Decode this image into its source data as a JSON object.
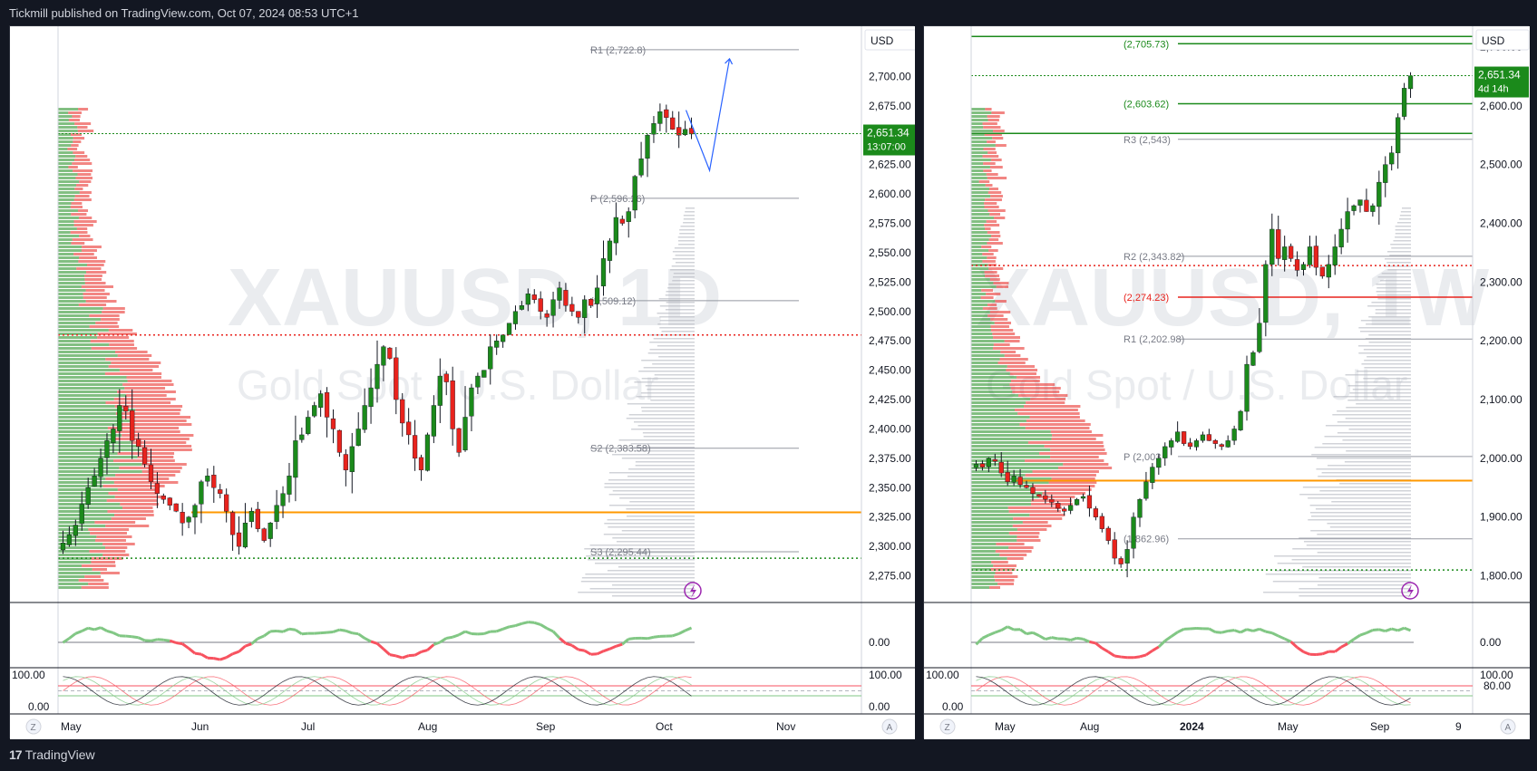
{
  "header": {
    "published": "Tickmill published on TradingView.com, Oct 07, 2024 08:53 UTC+1"
  },
  "footer": {
    "logo_mark": "17",
    "logo_text": "TradingView"
  },
  "left_chart": {
    "symbol_watermark": "XAUUSD, 1D",
    "name_watermark": "Gold Spot / U.S. Dollar",
    "currency": "USD",
    "last_price": "2,651.34",
    "countdown": "13:07:00",
    "y_ticks": [
      "2,700.00",
      "2,675.00",
      "2,650.00",
      "2,625.00",
      "2,600.00",
      "2,575.00",
      "2,550.00",
      "2,525.00",
      "2,500.00",
      "2,475.00",
      "2,450.00",
      "2,425.00",
      "2,400.00",
      "2,375.00",
      "2,350.00",
      "2,325.00",
      "2,300.00",
      "2,275.00"
    ],
    "x_ticks": [
      "May",
      "Jun",
      "Jul",
      "Aug",
      "Sep",
      "Oct",
      "Nov"
    ],
    "pivots": [
      {
        "label": "R1 (2,722.8)",
        "value": 2722.8
      },
      {
        "label": "P (2,596.26)",
        "value": 2596.26
      },
      {
        "label": "(2,509.12)",
        "value": 2509.12
      },
      {
        "label": "S2 (2,383.58)",
        "value": 2383.58
      },
      {
        "label": "S3 (2,295.44)",
        "value": 2295.44
      }
    ],
    "osc1_tick": "0.00",
    "osc2_ticks": [
      "100.00",
      "0.00"
    ],
    "corner_left": "Z",
    "corner_right": "A",
    "colors": {
      "up": "#1b8a1b",
      "down": "#e8231d",
      "pivot": "#9598a1",
      "orange": "#ff9800",
      "dotted_red": "#e8231d",
      "dotted_green": "#1b8a1b"
    }
  },
  "right_chart": {
    "symbol_watermark": "XAUUSD, 1W",
    "name_watermark": "Gold Spot / U.S. Dollar",
    "currency": "USD",
    "last_price": "2,651.34",
    "countdown": "4d 14h",
    "y_ticks": [
      "2,700.00",
      "2,600.00",
      "2,500.00",
      "2,400.00",
      "2,300.00",
      "2,200.00",
      "2,100.00",
      "2,000.00",
      "1,900.00",
      "1,800.00"
    ],
    "x_ticks": [
      "May",
      "Aug",
      "2024",
      "May",
      "Sep",
      "9"
    ],
    "levels": [
      {
        "label": "(2,705.73)",
        "value": 2705.73
      },
      {
        "label": "(2,603.62)",
        "value": 2603.62
      },
      {
        "label": "R3 (2,543)",
        "value": 2543
      },
      {
        "label": "R2 (2,343.82)",
        "value": 2343.82
      },
      {
        "label": "(2,274.23)",
        "value": 2274.23
      },
      {
        "label": "R1 (2,202.98)",
        "value": 2202.98
      },
      {
        "label": "P (2,003",
        "value": 2003
      },
      {
        "label": "(1,862.96)",
        "value": 1862.96
      }
    ],
    "osc1_tick": "0.00",
    "osc2_ticks": [
      "100.00",
      "0.00",
      "80.00"
    ],
    "corner_left": "Z",
    "corner_right": "A"
  },
  "chart_data": [
    {
      "type": "candlestick",
      "title": "XAUUSD, 1D",
      "ylim": [
        2260,
        2735
      ],
      "y_axis": "price (USD)",
      "closes_approx": [
        2303,
        2310,
        2318,
        2336,
        2350,
        2360,
        2375,
        2390,
        2400,
        2420,
        2415,
        2390,
        2385,
        2370,
        2355,
        2345,
        2340,
        2335,
        2330,
        2320,
        2325,
        2335,
        2355,
        2360,
        2350,
        2345,
        2330,
        2310,
        2300,
        2320,
        2330,
        2315,
        2305,
        2320,
        2335,
        2345,
        2360,
        2390,
        2395,
        2410,
        2420,
        2430,
        2410,
        2400,
        2380,
        2365,
        2385,
        2400,
        2420,
        2435,
        2455,
        2470,
        2460,
        2425,
        2405,
        2395,
        2375,
        2365,
        2395,
        2420,
        2445,
        2440,
        2400,
        2380,
        2410,
        2435,
        2445,
        2450,
        2470,
        2475,
        2480,
        2490,
        2500,
        2505,
        2515,
        2510,
        2500,
        2495,
        2510,
        2520,
        2505,
        2500,
        2495,
        2510,
        2505,
        2520,
        2545,
        2560,
        2580,
        2575,
        2585,
        2615,
        2630,
        2650,
        2660,
        2670,
        2665,
        2655,
        2650,
        2655,
        2651
      ],
      "forecast_path": [
        {
          "label": "down",
          "value": 2620
        },
        {
          "label": "up",
          "value": 2715
        }
      ]
    },
    {
      "type": "candlestick",
      "title": "XAUUSD, 1W",
      "ylim": [
        1770,
        2720
      ],
      "y_axis": "price (USD)",
      "closes_approx": [
        1990,
        1985,
        2000,
        1995,
        1975,
        1960,
        1970,
        1955,
        1950,
        1940,
        1935,
        1930,
        1925,
        1915,
        1910,
        1920,
        1930,
        1935,
        1915,
        1900,
        1880,
        1860,
        1830,
        1820,
        1845,
        1900,
        1930,
        1960,
        1985,
        2000,
        2020,
        2030,
        2045,
        2025,
        2020,
        2030,
        2040,
        2030,
        2025,
        2020,
        2030,
        2050,
        2080,
        2160,
        2180,
        2230,
        2330,
        2390,
        2340,
        2360,
        2340,
        2320,
        2330,
        2360,
        2325,
        2310,
        2330,
        2360,
        2390,
        2420,
        2430,
        2440,
        2420,
        2430,
        2470,
        2500,
        2520,
        2580,
        2630,
        2651
      ]
    }
  ]
}
